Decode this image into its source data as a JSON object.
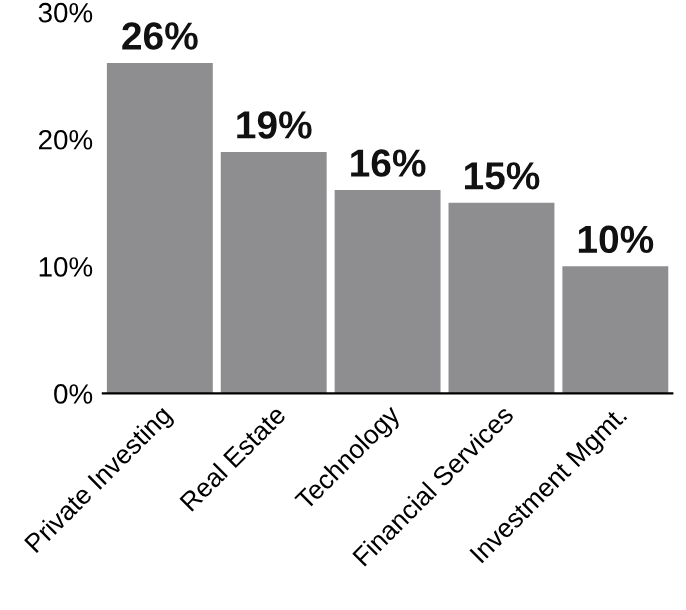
{
  "chart_data": {
    "type": "bar",
    "categories": [
      "Private Investing",
      "Real Estate",
      "Technology",
      "Financial Services",
      "Investment Mgmt."
    ],
    "values": [
      26,
      19,
      16,
      15,
      10
    ],
    "value_labels": [
      "26%",
      "19%",
      "16%",
      "15%",
      "10%"
    ],
    "color": "#8e8e90",
    "ylim": [
      0,
      30
    ],
    "yticks": [
      {
        "value": 0,
        "label": "0%"
      },
      {
        "value": 10,
        "label": "10%"
      },
      {
        "value": 20,
        "label": "20%"
      },
      {
        "value": 30,
        "label": "30%"
      }
    ],
    "grid": false
  }
}
